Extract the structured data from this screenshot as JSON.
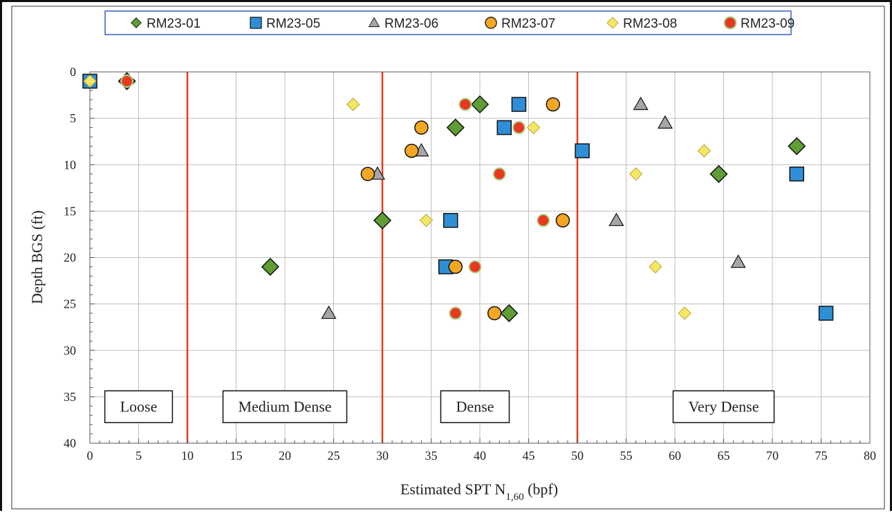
{
  "chart_data": {
    "type": "scatter",
    "title": "",
    "xlabel": "Estimated SPT N",
    "xlabel_subscript": "1,60",
    "xlabel_suffix": " (bpf)",
    "ylabel": "Depth BGS (ft)",
    "xlim": [
      0,
      80
    ],
    "ylim": [
      0,
      40
    ],
    "y_inverted": true,
    "x_ticks": [
      0,
      5,
      10,
      15,
      20,
      25,
      30,
      35,
      40,
      45,
      50,
      55,
      60,
      65,
      70,
      75,
      80
    ],
    "y_ticks": [
      0,
      5,
      10,
      15,
      20,
      25,
      30,
      35,
      40
    ],
    "grid": true,
    "legend_position": "top",
    "thresholds": [
      10,
      30,
      50
    ],
    "threshold_color": "#e8391f",
    "zones": [
      {
        "label": "Loose",
        "x": 5
      },
      {
        "label": "Medium Dense",
        "x": 20
      },
      {
        "label": "Dense",
        "x": 39.5
      },
      {
        "label": "Very Dense",
        "x": 65
      }
    ],
    "series": [
      {
        "name": "RM23-01",
        "marker": "diamond",
        "color": "#5e9e35",
        "points": [
          [
            3.8,
            1
          ],
          [
            40,
            3.5
          ],
          [
            37.5,
            6
          ],
          [
            72.5,
            8
          ],
          [
            64.5,
            11
          ],
          [
            30,
            16
          ],
          [
            18.5,
            21
          ],
          [
            43,
            26
          ]
        ]
      },
      {
        "name": "RM23-05",
        "marker": "square",
        "color": "#2e8fd6",
        "points": [
          [
            0,
            1
          ],
          [
            44,
            3.5
          ],
          [
            42.5,
            6
          ],
          [
            50.5,
            8.5
          ],
          [
            72.5,
            11
          ],
          [
            37,
            16
          ],
          [
            36.5,
            21
          ],
          [
            75.5,
            26
          ]
        ]
      },
      {
        "name": "RM23-06",
        "marker": "triangle",
        "color": "#a6a6a6",
        "points": [
          [
            56.5,
            3.5
          ],
          [
            59,
            5.5
          ],
          [
            34,
            8.5
          ],
          [
            29.5,
            11
          ],
          [
            54,
            16
          ],
          [
            66.5,
            20.5
          ],
          [
            24.5,
            26
          ]
        ]
      },
      {
        "name": "RM23-07",
        "marker": "circle",
        "color": "#f5a623",
        "points": [
          [
            47.5,
            3.5
          ],
          [
            34,
            6
          ],
          [
            33,
            8.5
          ],
          [
            28.5,
            11
          ],
          [
            48.5,
            16
          ],
          [
            37.5,
            21
          ],
          [
            41.5,
            26
          ]
        ]
      },
      {
        "name": "RM23-08",
        "marker": "small-diamond",
        "color": "#f5e663",
        "points": [
          [
            0,
            1
          ],
          [
            27,
            3.5
          ],
          [
            45.5,
            6
          ],
          [
            63,
            8.5
          ],
          [
            56,
            11
          ],
          [
            34.5,
            16
          ],
          [
            58,
            21
          ],
          [
            61,
            26
          ]
        ]
      },
      {
        "name": "RM23-09",
        "marker": "dot",
        "color": "#e8391f",
        "points": [
          [
            3.8,
            1
          ],
          [
            38.5,
            3.5
          ],
          [
            44,
            6
          ],
          [
            42,
            11
          ],
          [
            46.5,
            16
          ],
          [
            39.5,
            21
          ],
          [
            37.5,
            26
          ]
        ]
      }
    ]
  }
}
